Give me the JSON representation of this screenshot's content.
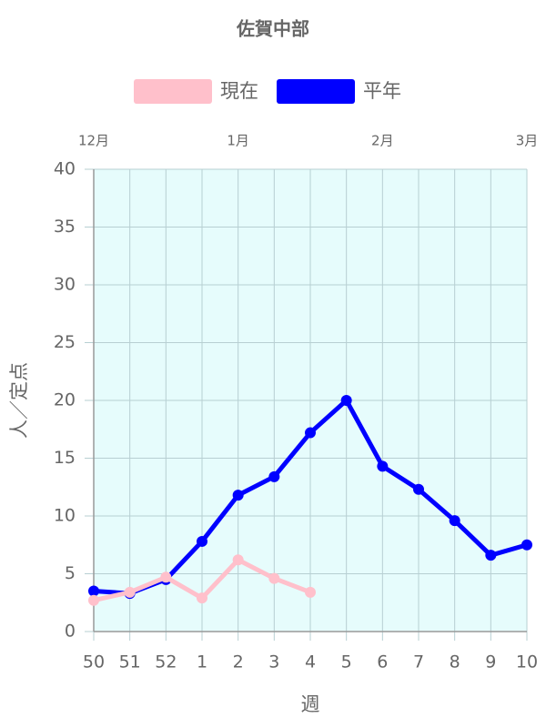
{
  "chart_data": {
    "type": "line",
    "title": "佐賀中部",
    "x_label": "週",
    "y_label": "人／定点",
    "categories": [
      "50",
      "51",
      "52",
      "1",
      "2",
      "3",
      "4",
      "5",
      "6",
      "7",
      "8",
      "9",
      "10"
    ],
    "x2categories": [
      "12月",
      null,
      null,
      null,
      "1月",
      null,
      null,
      null,
      "2月",
      null,
      null,
      null,
      "3月"
    ],
    "series": [
      {
        "name": "現在",
        "color": "#ffc0cb",
        "values": [
          2.7,
          3.4,
          4.7,
          2.9,
          6.2,
          4.6,
          3.4,
          null,
          null,
          null,
          null,
          null,
          null
        ]
      },
      {
        "name": "平年",
        "color": "#0000ff",
        "values": [
          3.5,
          3.3,
          4.5,
          7.8,
          11.8,
          13.4,
          17.2,
          20,
          14.3,
          12.3,
          9.6,
          6.6,
          7.5
        ]
      }
    ],
    "ylim": [
      0,
      40
    ],
    "yticks": [
      0,
      5,
      10,
      15,
      20,
      25,
      30,
      35,
      40
    ],
    "grid": true,
    "plot_background": "#e6fcfc"
  }
}
